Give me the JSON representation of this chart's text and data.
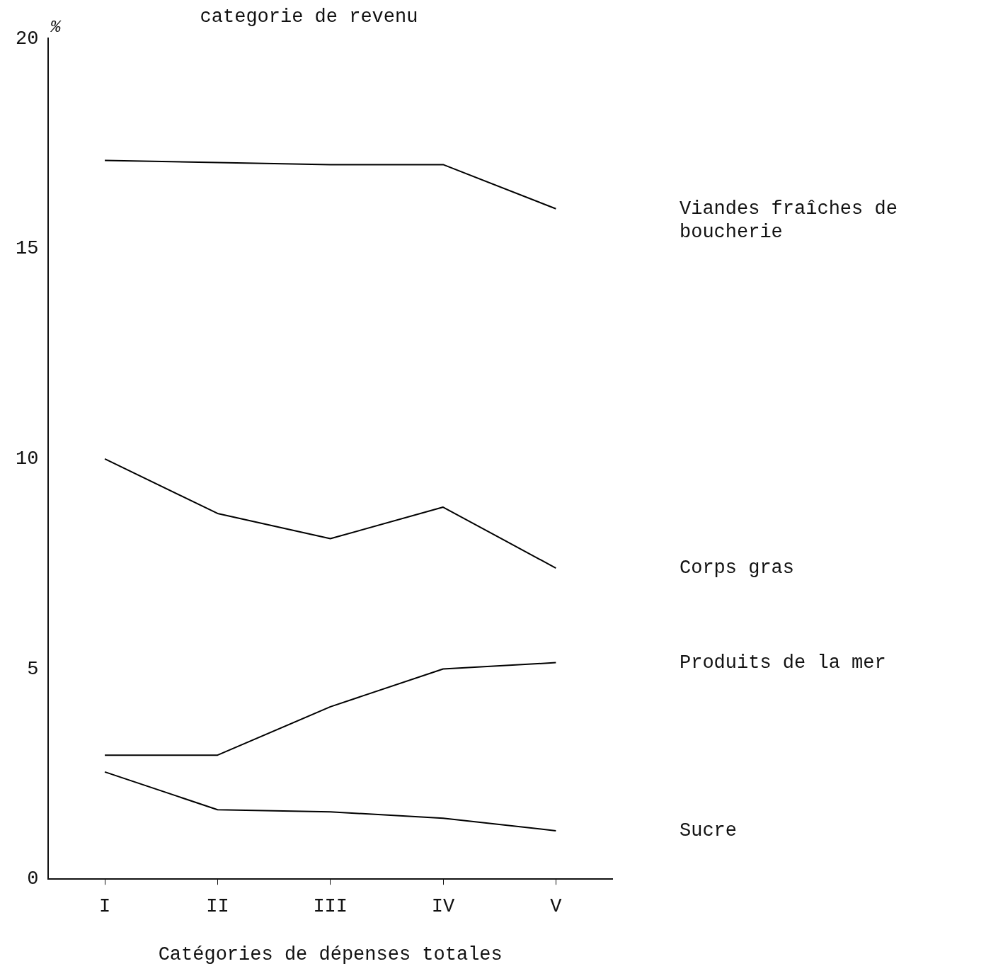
{
  "chart_data": {
    "type": "line",
    "title": "categorie de revenu",
    "xlabel": "Catégories de dépenses totales",
    "ylabel": "%",
    "categories": [
      "I",
      "II",
      "III",
      "IV",
      "V"
    ],
    "ylim": [
      0,
      20
    ],
    "yticks": [
      0,
      5,
      10,
      15,
      20
    ],
    "grid": false,
    "legend": false,
    "marker": "none",
    "line_style": "solid",
    "series": [
      {
        "name": "Viandes fraîches de boucherie",
        "color": "#000000",
        "values": [
          17.1,
          17.05,
          17.0,
          17.0,
          15.95
        ]
      },
      {
        "name": "Corps gras",
        "color": "#000000",
        "values": [
          10.0,
          8.7,
          8.1,
          8.85,
          7.4
        ]
      },
      {
        "name": "Produits de la mer",
        "color": "#000000",
        "values": [
          2.95,
          2.95,
          4.1,
          5.0,
          5.15
        ]
      },
      {
        "name": "Sucre",
        "color": "#000000",
        "values": [
          2.55,
          1.65,
          1.6,
          1.45,
          1.15
        ]
      }
    ]
  }
}
